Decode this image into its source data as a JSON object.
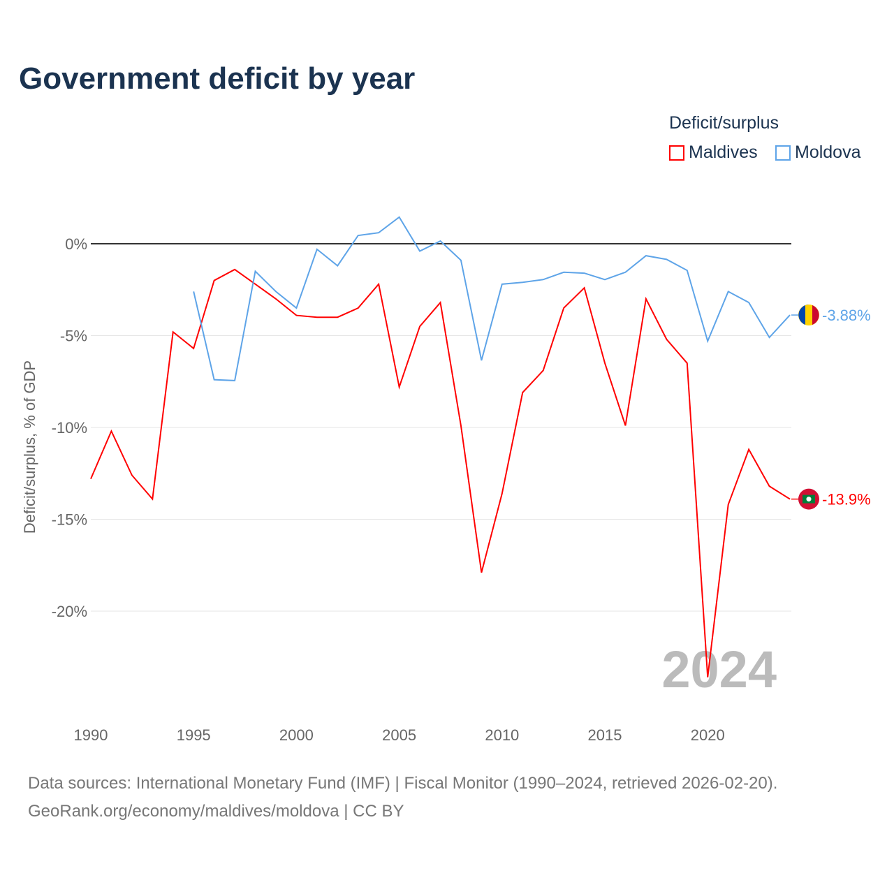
{
  "title": "Government deficit by year",
  "legend": {
    "title": "Deficit/surplus",
    "items": [
      {
        "label": "Maldives",
        "color": "#ff0000"
      },
      {
        "label": "Moldova",
        "color": "#5ea4e8"
      }
    ]
  },
  "watermark_year": "2024",
  "source_line1": "Data sources: International Monetary Fund (IMF) | Fiscal Monitor (1990–2024, retrieved 2026-02-20).",
  "source_line2": "GeoRank.org/economy/maldives/moldova | CC BY",
  "chart_data": {
    "type": "line",
    "title": "Government deficit by year",
    "xlabel": "",
    "ylabel": "Deficit/surplus, % of GDP",
    "xlim": [
      1990,
      2024
    ],
    "ylim": [
      -25,
      2.5
    ],
    "xticks": [
      "1990",
      "1995",
      "2000",
      "2005",
      "2010",
      "2015",
      "2020"
    ],
    "yticks": [
      {
        "v": 0,
        "label": "0%"
      },
      {
        "v": -5,
        "label": "-5%"
      },
      {
        "v": -10,
        "label": "-10%"
      },
      {
        "v": -15,
        "label": "-15%"
      },
      {
        "v": -20,
        "label": "-20%"
      }
    ],
    "series": [
      {
        "name": "Maldives",
        "color": "#ff0000",
        "end_label": "-13.9%",
        "x_start": 1990,
        "values": [
          -12.8,
          -10.2,
          -12.6,
          -13.9,
          -4.8,
          -5.7,
          -2.0,
          -1.4,
          -2.2,
          -3.0,
          -3.9,
          -4.0,
          -4.0,
          -3.5,
          -2.2,
          -7.8,
          -4.5,
          -3.2,
          -9.9,
          -17.9,
          -13.6,
          -8.1,
          -6.9,
          -3.5,
          -2.4,
          -6.5,
          -9.9,
          -3.0,
          -5.2,
          -6.5,
          -23.6,
          -14.2,
          -11.2,
          -13.2,
          -13.9
        ]
      },
      {
        "name": "Moldova",
        "color": "#5ea4e8",
        "end_label": "-3.88%",
        "x_start": 1995,
        "values": [
          -2.6,
          -7.4,
          -7.45,
          -1.5,
          -2.6,
          -3.5,
          -0.3,
          -1.2,
          0.45,
          0.6,
          1.45,
          -0.4,
          0.15,
          -0.9,
          -6.35,
          -2.2,
          -2.1,
          -1.95,
          -1.55,
          -1.6,
          -1.95,
          -1.55,
          -0.65,
          -0.85,
          -1.45,
          -5.3,
          -2.6,
          -3.2,
          -5.1,
          -3.88
        ]
      }
    ]
  }
}
